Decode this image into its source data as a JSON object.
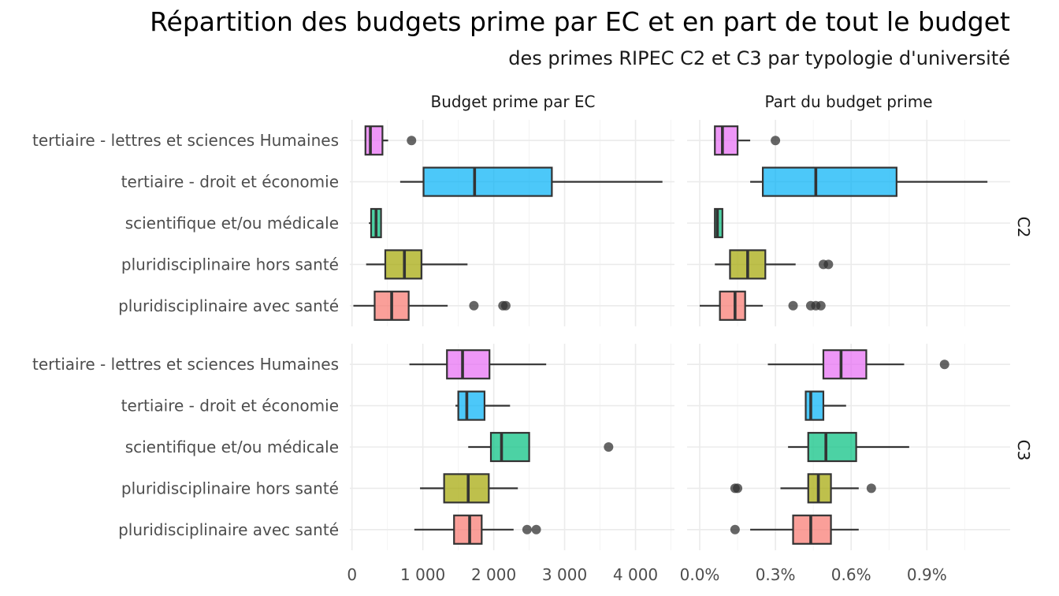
{
  "chart_data": {
    "type": "boxplot",
    "title": "Répartition des budgets prime par EC et en part de tout le budget",
    "subtitle": "des primes RIPEC C2 et C3 par typologie d'université",
    "facet_columns": [
      "Budget prime par EC",
      "Part du budget prime"
    ],
    "facet_rows": [
      "C2",
      "C3"
    ],
    "categories": [
      "tertiaire - lettres et sciences Humaines",
      "tertiaire - droit et économie",
      "scientifique et/ou médicale",
      "pluridisciplinaire hors santé",
      "pluridisciplinaire avec santé"
    ],
    "colors": {
      "tertiaire - lettres et sciences Humaines": "#e76bf3",
      "tertiaire - droit et économie": "#00b0f6",
      "scientifique et/ou médicale": "#00bf7d",
      "pluridisciplinaire hors santé": "#a3a500",
      "pluridisciplinaire avec santé": "#f8766d"
    },
    "x_axes": [
      {
        "facet": "Budget prime par EC",
        "xlim": [
          -30,
          4550
        ],
        "ticks": [
          0,
          1000,
          2000,
          3000,
          4000
        ],
        "tick_labels": [
          "0",
          "1 000",
          "2 000",
          "3 000",
          "4 000"
        ]
      },
      {
        "facet": "Part du budget prime",
        "unit": "%",
        "xlim": [
          -0.0005,
          0.0123
        ],
        "ticks": [
          0,
          0.003,
          0.006,
          0.009
        ],
        "tick_labels": [
          "0.0%",
          "0.3%",
          "0.6%",
          "0.9%"
        ]
      }
    ],
    "panels": [
      {
        "row": "C2",
        "col": "Budget prime par EC",
        "boxes": [
          {
            "category": "tertiaire - lettres et sciences Humaines",
            "min": 180,
            "q1": 190,
            "median": 260,
            "q3": 430,
            "max": 510,
            "outliers": [
              840
            ]
          },
          {
            "category": "tertiaire - droit et économie",
            "min": 680,
            "q1": 1010,
            "median": 1730,
            "q3": 2820,
            "max": 4380,
            "outliers": []
          },
          {
            "category": "scientifique et/ou médicale",
            "min": 240,
            "q1": 270,
            "median": 340,
            "q3": 410,
            "max": 420,
            "outliers": []
          },
          {
            "category": "pluridisciplinaire hors santé",
            "min": 200,
            "q1": 470,
            "median": 740,
            "q3": 980,
            "max": 1630,
            "outliers": []
          },
          {
            "category": "pluridisciplinaire avec santé",
            "min": 20,
            "q1": 320,
            "median": 560,
            "q3": 800,
            "max": 1350,
            "outliers": [
              1720,
              2130,
              2170
            ]
          }
        ]
      },
      {
        "row": "C2",
        "col": "Part du budget prime",
        "boxes": [
          {
            "category": "tertiaire - lettres et sciences Humaines",
            "min": 0.0006,
            "q1": 0.0006,
            "median": 0.0009,
            "q3": 0.0015,
            "max": 0.002,
            "outliers": [
              0.003
            ]
          },
          {
            "category": "tertiaire - droit et économie",
            "min": 0.002,
            "q1": 0.0025,
            "median": 0.0046,
            "q3": 0.0078,
            "max": 0.0114,
            "outliers": []
          },
          {
            "category": "scientifique et/ou médicale",
            "min": 0.0006,
            "q1": 0.0006,
            "median": 0.0007,
            "q3": 0.0009,
            "max": 0.0009,
            "outliers": []
          },
          {
            "category": "pluridisciplinaire hors santé",
            "min": 0.0006,
            "q1": 0.0012,
            "median": 0.0019,
            "q3": 0.0026,
            "max": 0.0038,
            "outliers": [
              0.0049,
              0.0051
            ]
          },
          {
            "category": "pluridisciplinaire avec santé",
            "min": 0.0,
            "q1": 0.0008,
            "median": 0.0014,
            "q3": 0.0018,
            "max": 0.0025,
            "outliers": [
              0.0037,
              0.0044,
              0.0046,
              0.0048
            ]
          }
        ]
      },
      {
        "row": "C3",
        "col": "Budget prime par EC",
        "boxes": [
          {
            "category": "tertiaire - lettres et sciences Humaines",
            "min": 810,
            "q1": 1340,
            "median": 1560,
            "q3": 1940,
            "max": 2740,
            "outliers": []
          },
          {
            "category": "tertiaire - droit et économie",
            "min": 1460,
            "q1": 1500,
            "median": 1620,
            "q3": 1870,
            "max": 2230,
            "outliers": []
          },
          {
            "category": "scientifique et/ou médicale",
            "min": 1640,
            "q1": 1960,
            "median": 2110,
            "q3": 2500,
            "max": 2500,
            "outliers": [
              3620
            ]
          },
          {
            "category": "pluridisciplinaire hors santé",
            "min": 960,
            "q1": 1300,
            "median": 1640,
            "q3": 1930,
            "max": 2340,
            "outliers": []
          },
          {
            "category": "pluridisciplinaire avec santé",
            "min": 880,
            "q1": 1440,
            "median": 1660,
            "q3": 1830,
            "max": 2280,
            "outliers": [
              2470,
              2600
            ]
          }
        ]
      },
      {
        "row": "C3",
        "col": "Part du budget prime",
        "boxes": [
          {
            "category": "tertiaire - lettres et sciences Humaines",
            "min": 0.0027,
            "q1": 0.0049,
            "median": 0.0056,
            "q3": 0.0066,
            "max": 0.0081,
            "outliers": [
              0.0097
            ]
          },
          {
            "category": "tertiaire - droit et économie",
            "min": 0.0042,
            "q1": 0.0042,
            "median": 0.0044,
            "q3": 0.0049,
            "max": 0.0058,
            "outliers": []
          },
          {
            "category": "scientifique et/ou médicale",
            "min": 0.0035,
            "q1": 0.0043,
            "median": 0.005,
            "q3": 0.0062,
            "max": 0.0083,
            "outliers": []
          },
          {
            "category": "pluridisciplinaire hors santé",
            "min": 0.0032,
            "q1": 0.0043,
            "median": 0.0047,
            "q3": 0.0052,
            "max": 0.0063,
            "outliers": [
              0.0014,
              0.0015,
              0.0068
            ]
          },
          {
            "category": "pluridisciplinaire avec santé",
            "min": 0.002,
            "q1": 0.0037,
            "median": 0.0044,
            "q3": 0.0052,
            "max": 0.0063,
            "outliers": [
              0.0014
            ]
          }
        ]
      }
    ]
  }
}
